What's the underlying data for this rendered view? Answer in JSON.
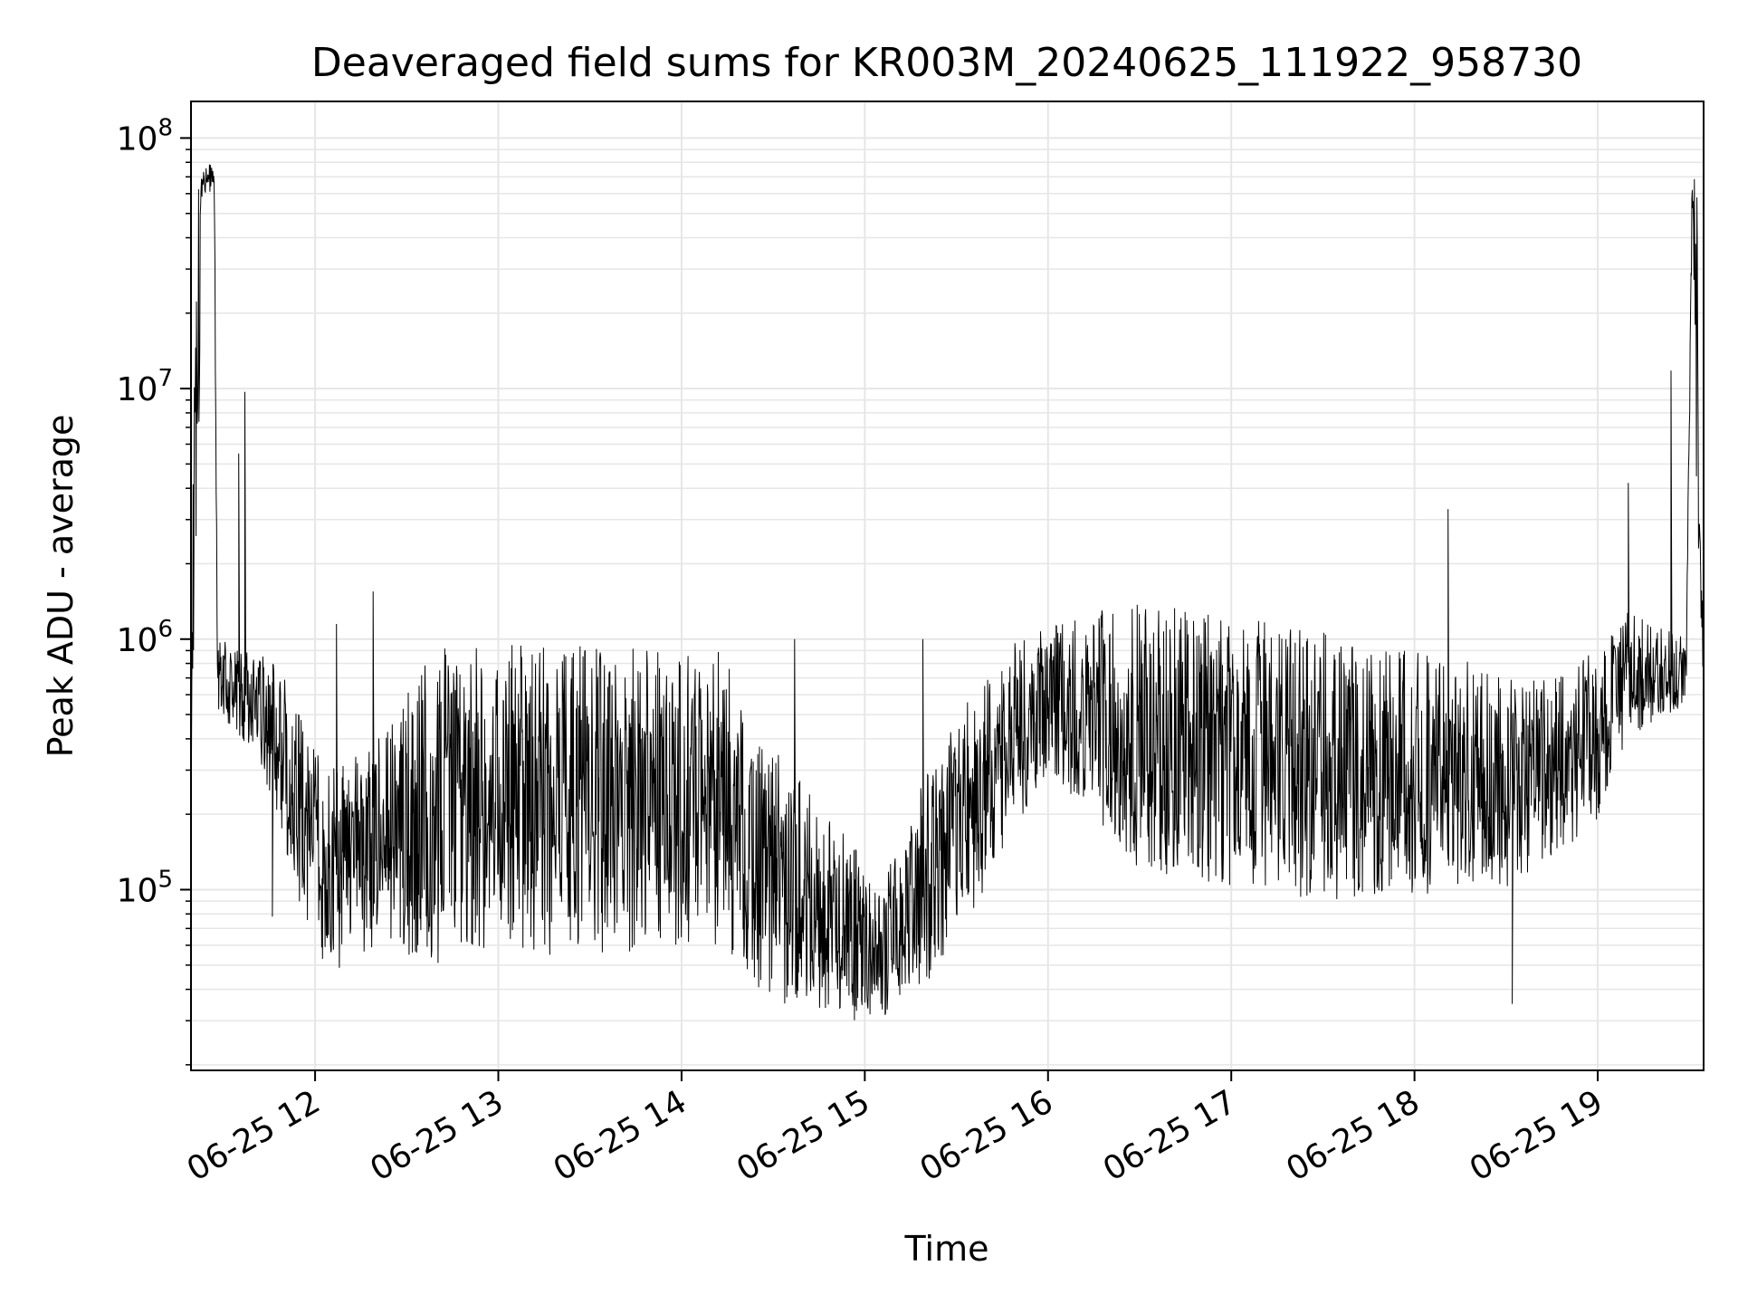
{
  "chart_data": {
    "type": "line",
    "title": "Deaveraged field sums for KR003M_20240625_111922_958730",
    "xlabel": "Time",
    "ylabel": "Peak ADU - average",
    "yscale": "log",
    "ylim": [
      19000,
      140000000
    ],
    "xlim": [
      "2024-06-25 11:19:22",
      "2024-06-25 19:34:40"
    ],
    "x_ticks": [
      {
        "x": "2024-06-25 12:00",
        "label": "06-25 12"
      },
      {
        "x": "2024-06-25 13:00",
        "label": "06-25 13"
      },
      {
        "x": "2024-06-25 14:00",
        "label": "06-25 14"
      },
      {
        "x": "2024-06-25 15:00",
        "label": "06-25 15"
      },
      {
        "x": "2024-06-25 16:00",
        "label": "06-25 16"
      },
      {
        "x": "2024-06-25 17:00",
        "label": "06-25 17"
      },
      {
        "x": "2024-06-25 18:00",
        "label": "06-25 18"
      },
      {
        "x": "2024-06-25 19:00",
        "label": "06-25 19"
      }
    ],
    "y_ticks": [
      {
        "value": 100000,
        "base": "10",
        "exp": "5"
      },
      {
        "value": 1000000,
        "base": "10",
        "exp": "6"
      },
      {
        "value": 10000000,
        "base": "10",
        "exp": "7"
      },
      {
        "value": 100000000,
        "base": "10",
        "exp": "8"
      }
    ],
    "grid": true,
    "line_color": "#000000",
    "grid_color": "#e6e6e6",
    "series": [
      {
        "profile": [
          {
            "t": "2024-06-25 11:19:22",
            "low": 300000,
            "high": 800000
          },
          {
            "t": "2024-06-25 11:21:00",
            "low": 900000,
            "high": 60000000
          },
          {
            "t": "2024-06-25 11:23:00",
            "low": 60000000,
            "high": 80000000
          },
          {
            "t": "2024-06-25 11:27:00",
            "low": 60000000,
            "high": 80000000
          },
          {
            "t": "2024-06-25 11:28:00",
            "low": 500000,
            "high": 1000000
          },
          {
            "t": "2024-06-25 11:40:00",
            "low": 350000,
            "high": 900000
          },
          {
            "t": "2024-06-25 11:48:00",
            "low": 200000,
            "high": 800000
          },
          {
            "t": "2024-06-25 11:55:00",
            "low": 80000,
            "high": 500000
          },
          {
            "t": "2024-06-25 12:05:00",
            "low": 45000,
            "high": 300000
          },
          {
            "t": "2024-06-25 12:20:00",
            "low": 60000,
            "high": 400000
          },
          {
            "t": "2024-06-25 12:40:00",
            "low": 50000,
            "high": 950000
          },
          {
            "t": "2024-06-25 13:30:00",
            "low": 55000,
            "high": 950000
          },
          {
            "t": "2024-06-25 14:15:00",
            "low": 60000,
            "high": 950000
          },
          {
            "t": "2024-06-25 14:20:00",
            "low": 40000,
            "high": 500000
          },
          {
            "t": "2024-06-25 14:50:00",
            "low": 30000,
            "high": 200000
          },
          {
            "t": "2024-06-25 15:05:00",
            "low": 30000,
            "high": 100000
          },
          {
            "t": "2024-06-25 15:20:00",
            "low": 40000,
            "high": 300000
          },
          {
            "t": "2024-06-25 15:40:00",
            "low": 100000,
            "high": 800000
          },
          {
            "t": "2024-06-25 16:00:00",
            "low": 300000,
            "high": 1200000
          },
          {
            "t": "2024-06-25 16:30:00",
            "low": 120000,
            "high": 1400000
          },
          {
            "t": "2024-06-25 17:30:00",
            "low": 90000,
            "high": 1100000
          },
          {
            "t": "2024-06-25 18:30:00",
            "low": 100000,
            "high": 750000
          },
          {
            "t": "2024-06-25 19:00:00",
            "low": 180000,
            "high": 900000
          },
          {
            "t": "2024-06-25 19:10:00",
            "low": 400000,
            "high": 1300000
          },
          {
            "t": "2024-06-25 19:29:00",
            "low": 500000,
            "high": 1000000
          },
          {
            "t": "2024-06-25 19:31:00",
            "low": 60000000,
            "high": 90000000
          },
          {
            "t": "2024-06-25 19:33:00",
            "low": 1000000,
            "high": 60000000
          },
          {
            "t": "2024-06-25 19:34:40",
            "low": 650000,
            "high": 700000
          }
        ],
        "spikes": [
          {
            "t": "2024-06-25 11:35:00",
            "value": 5500000
          },
          {
            "t": "2024-06-25 11:37:00",
            "value": 9700000
          },
          {
            "t": "2024-06-25 11:46:00",
            "value": 78000
          },
          {
            "t": "2024-06-25 12:07:00",
            "value": 1150000
          },
          {
            "t": "2024-06-25 12:19:00",
            "value": 1550000
          },
          {
            "t": "2024-06-25 14:37:00",
            "value": 1000000
          },
          {
            "t": "2024-06-25 15:19:00",
            "value": 1000000
          },
          {
            "t": "2024-06-25 18:11:00",
            "value": 3300000
          },
          {
            "t": "2024-06-25 18:32:00",
            "value": 35000
          },
          {
            "t": "2024-06-25 19:10:00",
            "value": 4200000
          },
          {
            "t": "2024-06-25 19:24:00",
            "value": 11800000
          }
        ]
      }
    ]
  }
}
